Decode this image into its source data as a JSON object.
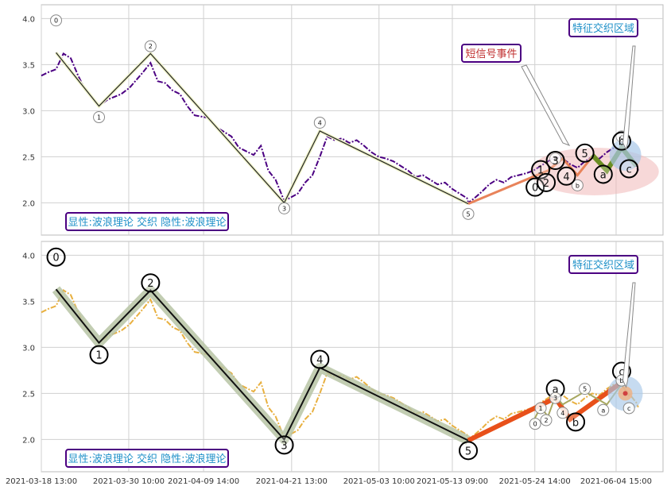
{
  "chart_data": [
    {
      "type": "line",
      "panel": "top",
      "ylim": [
        1.65,
        4.15
      ],
      "yticks": [
        2.0,
        2.5,
        3.0,
        3.5,
        4.0
      ],
      "grid": true,
      "price_style": "dash-dot",
      "price_color": "#4b0082",
      "price_series": [
        [
          "2021-03-18 13:00",
          3.38
        ],
        [
          "2021-03-19 13:00",
          3.42
        ],
        [
          "2021-03-20 13:00",
          3.45
        ],
        [
          "2021-03-21 13:00",
          3.62
        ],
        [
          "2021-03-22 13:00",
          3.57
        ],
        [
          "2021-03-23 13:00",
          3.38
        ],
        [
          "2021-03-24 13:00",
          3.22
        ],
        [
          "2021-03-26 09:00",
          3.05
        ],
        [
          "2021-03-27 13:00",
          3.12
        ],
        [
          "2021-03-29 09:00",
          3.18
        ],
        [
          "2021-03-30 13:00",
          3.25
        ],
        [
          "2021-04-01 09:00",
          3.42
        ],
        [
          "2021-04-02 09:00",
          3.52
        ],
        [
          "2021-04-03 09:00",
          3.32
        ],
        [
          "2021-04-04 09:00",
          3.3
        ],
        [
          "2021-04-05 09:00",
          3.22
        ],
        [
          "2021-04-06 09:00",
          3.18
        ],
        [
          "2021-04-07 09:00",
          3.05
        ],
        [
          "2021-04-08 09:00",
          2.95
        ],
        [
          "2021-04-10 09:00",
          2.92
        ],
        [
          "2021-04-11 09:00",
          2.82
        ],
        [
          "2021-04-13 09:00",
          2.72
        ],
        [
          "2021-04-14 09:00",
          2.6
        ],
        [
          "2021-04-16 09:00",
          2.52
        ],
        [
          "2021-04-17 09:00",
          2.62
        ],
        [
          "2021-04-18 09:00",
          2.35
        ],
        [
          "2021-04-19 09:00",
          2.25
        ],
        [
          "2021-04-20 13:00",
          2.02
        ],
        [
          "2021-04-22 09:00",
          2.1
        ],
        [
          "2021-04-23 09:00",
          2.22
        ],
        [
          "2021-04-24 09:00",
          2.3
        ],
        [
          "2021-04-25 09:00",
          2.5
        ],
        [
          "2021-04-26 09:00",
          2.72
        ],
        [
          "2021-04-27 09:00",
          2.68
        ],
        [
          "2021-04-28 09:00",
          2.7
        ],
        [
          "2021-04-29 09:00",
          2.65
        ],
        [
          "2021-04-30 09:00",
          2.68
        ],
        [
          "2021-05-01 09:00",
          2.62
        ],
        [
          "2021-05-02 09:00",
          2.55
        ],
        [
          "2021-05-03 09:00",
          2.5
        ],
        [
          "2021-05-04 09:00",
          2.48
        ],
        [
          "2021-05-05 09:00",
          2.45
        ],
        [
          "2021-05-06 09:00",
          2.4
        ],
        [
          "2021-05-07 09:00",
          2.35
        ],
        [
          "2021-05-08 09:00",
          2.28
        ],
        [
          "2021-05-09 09:00",
          2.3
        ],
        [
          "2021-05-10 09:00",
          2.25
        ],
        [
          "2021-05-11 09:00",
          2.2
        ],
        [
          "2021-05-12 09:00",
          2.22
        ],
        [
          "2021-05-13 09:00",
          2.15
        ],
        [
          "2021-05-14 09:00",
          2.1
        ],
        [
          "2021-05-15 09:00",
          2.05
        ],
        [
          "2021-05-15 13:00",
          2.0
        ],
        [
          "2021-05-16 09:00",
          2.05
        ],
        [
          "2021-05-17 09:00",
          2.12
        ],
        [
          "2021-05-18 09:00",
          2.2
        ],
        [
          "2021-05-19 09:00",
          2.25
        ],
        [
          "2021-05-20 09:00",
          2.22
        ],
        [
          "2021-05-21 09:00",
          2.28
        ],
        [
          "2021-05-22 09:00",
          2.3
        ],
        [
          "2021-05-23 09:00",
          2.32
        ],
        [
          "2021-05-24 09:00",
          2.35
        ],
        [
          "2021-05-25 09:00",
          2.4
        ],
        [
          "2021-05-26 09:00",
          2.45
        ],
        [
          "2021-05-27 09:00",
          2.5
        ],
        [
          "2021-05-28 09:00",
          2.48
        ],
        [
          "2021-05-29 09:00",
          2.42
        ],
        [
          "2021-05-30 09:00",
          2.38
        ],
        [
          "2021-05-31 09:00",
          2.45
        ],
        [
          "2021-06-01 09:00",
          2.5
        ],
        [
          "2021-06-02 09:00",
          2.48
        ],
        [
          "2021-06-03 09:00",
          2.55
        ],
        [
          "2021-06-04 09:00",
          2.6
        ],
        [
          "2021-06-05 09:00",
          2.58
        ],
        [
          "2021-06-06 09:00",
          2.5
        ],
        [
          "2021-06-07 09:00",
          2.4
        ],
        [
          "2021-06-07 15:00",
          2.35
        ]
      ],
      "waves": [
        {
          "style": "thin-black",
          "points": [
            [
              "2021-03-20 13:00",
              3.63
            ],
            [
              "2021-03-26 09:00",
              3.05
            ],
            [
              "2021-04-02 09:00",
              3.62
            ],
            [
              "2021-04-20 13:00",
              2.0
            ],
            [
              "2021-04-25 09:00",
              2.78
            ],
            [
              "2021-05-15 13:00",
              1.99
            ]
          ]
        },
        {
          "style": "orange",
          "points": [
            [
              "2021-05-15 13:00",
              1.99
            ],
            [
              "2021-05-26 09:00",
              2.35
            ],
            [
              "2021-05-28 09:00",
              2.48
            ],
            [
              "2021-05-30 09:00",
              2.3
            ],
            [
              "2021-05-31 09:00",
              2.4
            ],
            [
              "2021-06-01 09:00",
              2.5
            ]
          ]
        },
        {
          "style": "green",
          "points": [
            [
              "2021-06-01 09:00",
              2.52
            ],
            [
              "2021-06-03 09:00",
              2.35
            ],
            [
              "2021-06-05 09:00",
              2.6
            ],
            [
              "2021-06-07 09:00",
              2.4
            ]
          ]
        }
      ],
      "labels": [
        {
          "t": "0",
          "x": "2021-03-20 13:00",
          "y": 3.98,
          "size": "small"
        },
        {
          "t": "1",
          "x": "2021-03-26 09:00",
          "y": 2.93,
          "size": "small"
        },
        {
          "t": "2",
          "x": "2021-04-02 09:00",
          "y": 3.7,
          "size": "small"
        },
        {
          "t": "3",
          "x": "2021-04-20 13:00",
          "y": 1.94,
          "size": "small"
        },
        {
          "t": "4",
          "x": "2021-04-25 09:00",
          "y": 2.87,
          "size": "small"
        },
        {
          "t": "5",
          "x": "2021-05-15 13:00",
          "y": 1.88,
          "size": "small"
        },
        {
          "t": "a",
          "x": "2021-05-27 09:00",
          "y": 2.48,
          "size": "small"
        },
        {
          "t": "b",
          "x": "2021-05-30 09:00",
          "y": 2.19,
          "size": "small"
        },
        {
          "t": "c",
          "x": "2021-06-05 09:00",
          "y": 2.72,
          "size": "small"
        },
        {
          "t": "0",
          "x": "2021-05-24 15:00",
          "y": 2.17,
          "size": "large"
        },
        {
          "t": "1",
          "x": "2021-05-25 09:00",
          "y": 2.36,
          "size": "large"
        },
        {
          "t": "2",
          "x": "2021-05-26 03:00",
          "y": 2.22,
          "size": "large"
        },
        {
          "t": "3",
          "x": "2021-05-27 09:00",
          "y": 2.46,
          "size": "large"
        },
        {
          "t": "4",
          "x": "2021-05-28 21:00",
          "y": 2.29,
          "size": "large"
        },
        {
          "t": "5",
          "x": "2021-05-31 09:00",
          "y": 2.54,
          "size": "large"
        },
        {
          "t": "a",
          "x": "2021-06-02 21:00",
          "y": 2.31,
          "size": "large"
        },
        {
          "t": "b",
          "x": "2021-06-05 09:00",
          "y": 2.67,
          "size": "large"
        },
        {
          "t": "c",
          "x": "2021-06-06 09:00",
          "y": 2.37,
          "size": "large"
        }
      ],
      "annotations": {
        "short_signal": "短信号事件",
        "feature_zone": "特征交织区域",
        "caption": "显性:波浪理论 交织 隐性:波浪理论"
      }
    },
    {
      "type": "line",
      "panel": "bottom",
      "ylim": [
        1.65,
        4.15
      ],
      "yticks": [
        2.0,
        2.5,
        3.0,
        3.5,
        4.0
      ],
      "grid": true,
      "price_style": "dash-dot",
      "price_color": "#e8b040",
      "price_series": [
        [
          "2021-03-18 13:00",
          3.38
        ],
        [
          "2021-03-19 13:00",
          3.42
        ],
        [
          "2021-03-20 13:00",
          3.45
        ],
        [
          "2021-03-21 13:00",
          3.62
        ],
        [
          "2021-03-22 13:00",
          3.57
        ],
        [
          "2021-03-23 13:00",
          3.38
        ],
        [
          "2021-03-24 13:00",
          3.22
        ],
        [
          "2021-03-26 09:00",
          3.05
        ],
        [
          "2021-03-27 13:00",
          3.12
        ],
        [
          "2021-03-29 09:00",
          3.18
        ],
        [
          "2021-03-30 13:00",
          3.25
        ],
        [
          "2021-04-01 09:00",
          3.42
        ],
        [
          "2021-04-02 09:00",
          3.52
        ],
        [
          "2021-04-03 09:00",
          3.32
        ],
        [
          "2021-04-04 09:00",
          3.3
        ],
        [
          "2021-04-05 09:00",
          3.22
        ],
        [
          "2021-04-06 09:00",
          3.18
        ],
        [
          "2021-04-07 09:00",
          3.05
        ],
        [
          "2021-04-08 09:00",
          2.95
        ],
        [
          "2021-04-10 09:00",
          2.92
        ],
        [
          "2021-04-11 09:00",
          2.82
        ],
        [
          "2021-04-13 09:00",
          2.72
        ],
        [
          "2021-04-14 09:00",
          2.6
        ],
        [
          "2021-04-16 09:00",
          2.52
        ],
        [
          "2021-04-17 09:00",
          2.62
        ],
        [
          "2021-04-18 09:00",
          2.35
        ],
        [
          "2021-04-19 09:00",
          2.25
        ],
        [
          "2021-04-20 13:00",
          2.02
        ],
        [
          "2021-04-22 09:00",
          2.1
        ],
        [
          "2021-04-23 09:00",
          2.22
        ],
        [
          "2021-04-24 09:00",
          2.3
        ],
        [
          "2021-04-25 09:00",
          2.5
        ],
        [
          "2021-04-26 09:00",
          2.72
        ],
        [
          "2021-04-27 09:00",
          2.68
        ],
        [
          "2021-04-28 09:00",
          2.7
        ],
        [
          "2021-04-29 09:00",
          2.65
        ],
        [
          "2021-04-30 09:00",
          2.68
        ],
        [
          "2021-05-01 09:00",
          2.62
        ],
        [
          "2021-05-02 09:00",
          2.55
        ],
        [
          "2021-05-03 09:00",
          2.5
        ],
        [
          "2021-05-04 09:00",
          2.48
        ],
        [
          "2021-05-05 09:00",
          2.45
        ],
        [
          "2021-05-06 09:00",
          2.4
        ],
        [
          "2021-05-07 09:00",
          2.35
        ],
        [
          "2021-05-08 09:00",
          2.28
        ],
        [
          "2021-05-09 09:00",
          2.3
        ],
        [
          "2021-05-10 09:00",
          2.25
        ],
        [
          "2021-05-11 09:00",
          2.2
        ],
        [
          "2021-05-12 09:00",
          2.22
        ],
        [
          "2021-05-13 09:00",
          2.15
        ],
        [
          "2021-05-14 09:00",
          2.1
        ],
        [
          "2021-05-15 09:00",
          2.05
        ],
        [
          "2021-05-15 13:00",
          2.0
        ],
        [
          "2021-05-16 09:00",
          2.05
        ],
        [
          "2021-05-17 09:00",
          2.12
        ],
        [
          "2021-05-18 09:00",
          2.2
        ],
        [
          "2021-05-19 09:00",
          2.25
        ],
        [
          "2021-05-20 09:00",
          2.22
        ],
        [
          "2021-05-21 09:00",
          2.28
        ],
        [
          "2021-05-22 09:00",
          2.3
        ],
        [
          "2021-05-23 09:00",
          2.32
        ],
        [
          "2021-05-24 09:00",
          2.35
        ],
        [
          "2021-05-25 09:00",
          2.4
        ],
        [
          "2021-05-26 09:00",
          2.45
        ],
        [
          "2021-05-27 09:00",
          2.5
        ],
        [
          "2021-05-28 09:00",
          2.48
        ],
        [
          "2021-05-29 09:00",
          2.42
        ],
        [
          "2021-05-30 09:00",
          2.38
        ],
        [
          "2021-05-31 09:00",
          2.45
        ],
        [
          "2021-06-01 09:00",
          2.5
        ],
        [
          "2021-06-02 09:00",
          2.48
        ],
        [
          "2021-06-03 09:00",
          2.55
        ],
        [
          "2021-06-04 09:00",
          2.6
        ],
        [
          "2021-06-05 09:00",
          2.58
        ],
        [
          "2021-06-06 09:00",
          2.5
        ],
        [
          "2021-06-07 09:00",
          2.4
        ],
        [
          "2021-06-07 15:00",
          2.35
        ]
      ],
      "waves": [
        {
          "style": "thick-black",
          "points": [
            [
              "2021-03-20 13:00",
              3.63
            ],
            [
              "2021-03-26 09:00",
              3.05
            ],
            [
              "2021-04-02 09:00",
              3.62
            ],
            [
              "2021-04-20 13:00",
              2.0
            ],
            [
              "2021-04-25 09:00",
              2.78
            ],
            [
              "2021-05-15 13:00",
              1.99
            ]
          ]
        },
        {
          "style": "thick-orange",
          "points": [
            [
              "2021-05-15 13:00",
              1.99
            ],
            [
              "2021-05-27 09:00",
              2.45
            ],
            [
              "2021-05-29 09:00",
              2.22
            ],
            [
              "2021-06-05 09:00",
              2.62
            ]
          ]
        },
        {
          "style": "thin-olive",
          "points": [
            [
              "2021-05-24 09:00",
              2.2
            ],
            [
              "2021-05-25 09:00",
              2.35
            ],
            [
              "2021-05-26 09:00",
              2.25
            ],
            [
              "2021-05-27 09:00",
              2.47
            ],
            [
              "2021-05-28 09:00",
              2.38
            ],
            [
              "2021-05-31 09:00",
              2.52
            ],
            [
              "2021-06-03 09:00",
              2.38
            ],
            [
              "2021-06-05 09:00",
              2.6
            ],
            [
              "2021-06-06 09:00",
              2.47
            ]
          ]
        }
      ],
      "labels": [
        {
          "t": "0",
          "x": "2021-03-20 13:00",
          "y": 3.98,
          "size": "large"
        },
        {
          "t": "1",
          "x": "2021-03-26 09:00",
          "y": 2.92,
          "size": "large"
        },
        {
          "t": "2",
          "x": "2021-04-02 09:00",
          "y": 3.7,
          "size": "large"
        },
        {
          "t": "3",
          "x": "2021-04-20 13:00",
          "y": 1.94,
          "size": "large"
        },
        {
          "t": "4",
          "x": "2021-04-25 09:00",
          "y": 2.87,
          "size": "large"
        },
        {
          "t": "5",
          "x": "2021-05-15 13:00",
          "y": 1.88,
          "size": "large"
        },
        {
          "t": "a",
          "x": "2021-05-27 09:00",
          "y": 2.55,
          "size": "large"
        },
        {
          "t": "b",
          "x": "2021-05-30 03:00",
          "y": 2.19,
          "size": "large"
        },
        {
          "t": "c",
          "x": "2021-06-05 09:00",
          "y": 2.74,
          "size": "large"
        },
        {
          "t": "0",
          "x": "2021-05-24 15:00",
          "y": 2.17,
          "size": "small"
        },
        {
          "t": "1",
          "x": "2021-05-25 09:00",
          "y": 2.34,
          "size": "small"
        },
        {
          "t": "2",
          "x": "2021-05-26 03:00",
          "y": 2.21,
          "size": "small"
        },
        {
          "t": "3",
          "x": "2021-05-27 09:00",
          "y": 2.45,
          "size": "small"
        },
        {
          "t": "4",
          "x": "2021-05-28 09:00",
          "y": 2.29,
          "size": "small"
        },
        {
          "t": "5",
          "x": "2021-05-31 09:00",
          "y": 2.55,
          "size": "small"
        },
        {
          "t": "a",
          "x": "2021-06-02 21:00",
          "y": 2.32,
          "size": "small"
        },
        {
          "t": "b",
          "x": "2021-06-05 09:00",
          "y": 2.64,
          "size": "small"
        },
        {
          "t": "c",
          "x": "2021-06-06 09:00",
          "y": 2.34,
          "size": "small"
        }
      ],
      "annotations": {
        "feature_zone": "特征交织区域",
        "caption": "显性:波浪理论 交织 隐性:波浪理论"
      }
    }
  ],
  "x_axis": {
    "start": "2021-03-18 13:00",
    "end": "2021-06-11 00:00",
    "tick_labels": [
      "2021-03-18 13:00",
      "2021-03-30 10:00",
      "2021-04-09 14:00",
      "2021-04-21 13:00",
      "2021-05-03 10:00",
      "2021-05-13 09:00",
      "2021-05-24 14:00",
      "2021-06-04 15:00"
    ]
  },
  "colors": {
    "grid": "#d0d0d0",
    "annotation_border": "#4b0082",
    "caption_text": "#1e90c8",
    "short_signal_text": "#c03030",
    "orange_wave": "#e8835a",
    "thick_orange_wave": "#e8501a",
    "green_wave": "#6b8e23",
    "halo": "#b7c4a4",
    "highlight_ellipse": "#f0b8b8",
    "feature_circle": "#a8c8e8"
  }
}
